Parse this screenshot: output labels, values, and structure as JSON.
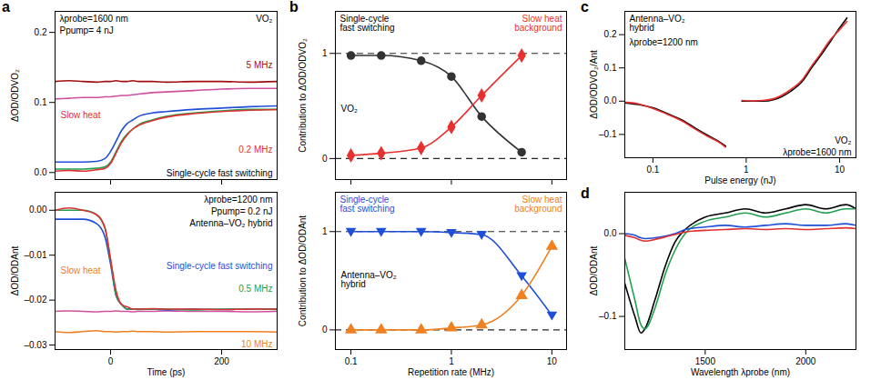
{
  "chart_data": [
    {
      "type": "line",
      "panel": "a",
      "y_label": "ΔOD/ODVO₂",
      "x": [
        -100,
        -75,
        -50,
        -25,
        -10,
        0,
        10,
        20,
        30,
        40,
        50,
        75,
        100,
        150,
        200,
        250,
        300
      ],
      "xlim": [
        -100,
        300
      ],
      "xticks": [
        0,
        200
      ],
      "ylim": [
        -0.01,
        0.23
      ],
      "yticks": [
        {
          "value": 0,
          "label": "0.0"
        },
        {
          "value": 0.1,
          "label": "0.1"
        },
        {
          "value": 0.2,
          "label": "0.2"
        }
      ],
      "tick_labels": "y",
      "series": [
        {
          "color": "#a01010",
          "values": [
            0.13,
            0.131,
            0.13,
            0.129,
            0.13,
            0.13,
            0.131,
            0.13,
            0.13,
            0.131,
            0.13,
            0.13,
            0.129,
            0.13,
            0.13,
            0.129,
            0.13
          ]
        },
        {
          "color": "#d050a0",
          "values": [
            0.105,
            0.106,
            0.107,
            0.107,
            0.108,
            0.108,
            0.109,
            0.11,
            0.11,
            0.111,
            0.112,
            0.114,
            0.115,
            0.117,
            0.119,
            0.12,
            0.12
          ]
        },
        {
          "color": "#1f4fd8",
          "values": [
            0.015,
            0.015,
            0.015,
            0.016,
            0.02,
            0.03,
            0.045,
            0.06,
            0.07,
            0.075,
            0.08,
            0.085,
            0.087,
            0.09,
            0.092,
            0.094,
            0.095
          ]
        },
        {
          "color": "#20a050",
          "values": [
            0.005,
            0.005,
            0.005,
            0.006,
            0.008,
            0.015,
            0.03,
            0.045,
            0.055,
            0.062,
            0.068,
            0.075,
            0.08,
            0.085,
            0.088,
            0.09,
            0.09
          ]
        },
        {
          "color": "#e03030",
          "values": [
            0.002,
            0.003,
            0.002,
            0.004,
            0.006,
            0.013,
            0.028,
            0.043,
            0.054,
            0.062,
            0.067,
            0.074,
            0.079,
            0.084,
            0.087,
            0.089,
            0.09
          ]
        }
      ],
      "annotations": [
        {
          "text": "λprobe=1600 nm",
          "color": "#000000"
        },
        {
          "text": "Ppump= 4 nJ",
          "color": "#000000"
        },
        {
          "text": "VO₂",
          "color": "#000000"
        },
        {
          "text": "5 MHz",
          "color": "#a01010"
        },
        {
          "text": "Slow heat",
          "color": "#e03030"
        },
        {
          "text": "0.2 MHz",
          "color": "#e03030"
        },
        {
          "text": "Single-cycle fast switching",
          "color": "#000000"
        }
      ]
    },
    {
      "type": "line",
      "y_label": "ΔOD/ODAnt",
      "x_label": "Time (ps)",
      "x": [
        -100,
        -75,
        -50,
        -25,
        -10,
        0,
        10,
        20,
        30,
        40,
        50,
        75,
        100,
        150,
        200,
        250,
        300
      ],
      "xlim": [
        -100,
        300
      ],
      "xticks": [
        0,
        200
      ],
      "ylim": [
        -0.031,
        0.004
      ],
      "yticks": [
        {
          "value": -0.03,
          "label": "–0.03"
        },
        {
          "value": -0.02,
          "label": "–0.02"
        },
        {
          "value": -0.01,
          "label": "–0.01"
        },
        {
          "value": 0,
          "label": "0.00"
        }
      ],
      "series": [
        {
          "color": "#f08020",
          "values": [
            -0.027,
            -0.0272,
            -0.027,
            -0.0268,
            -0.027,
            -0.027,
            -0.0271,
            -0.027,
            -0.027,
            -0.0269,
            -0.027,
            -0.027,
            -0.0271,
            -0.027,
            -0.027,
            -0.027,
            -0.0271
          ]
        },
        {
          "color": "#d050a0",
          "values": [
            -0.0225,
            -0.0224,
            -0.0225,
            -0.0226,
            -0.0225,
            -0.0225,
            -0.0224,
            -0.0225,
            -0.0225,
            -0.0226,
            -0.0225,
            -0.0225,
            -0.0224,
            -0.0225,
            -0.0225,
            -0.0226,
            -0.0225
          ]
        },
        {
          "color": "#1f4fd8",
          "values": [
            -0.002,
            -0.002,
            -0.002,
            -0.003,
            -0.006,
            -0.012,
            -0.019,
            -0.021,
            -0.022,
            -0.022,
            -0.022,
            -0.022,
            -0.0222,
            -0.022,
            -0.0221,
            -0.022,
            -0.022
          ]
        },
        {
          "color": "#20a050",
          "values": [
            0,
            0,
            0,
            -0.001,
            -0.004,
            -0.011,
            -0.019,
            -0.021,
            -0.022,
            -0.022,
            -0.0221,
            -0.022,
            -0.022,
            -0.0222,
            -0.022,
            -0.022,
            -0.0221
          ]
        },
        {
          "color": "#e03030",
          "values": [
            0,
            0.0005,
            0,
            -0.001,
            -0.004,
            -0.011,
            -0.018,
            -0.021,
            -0.0215,
            -0.022,
            -0.022,
            -0.0219,
            -0.022,
            -0.022,
            -0.0221,
            -0.022,
            -0.022
          ]
        }
      ],
      "annotations": [
        {
          "text": "λprobe=1200 nm",
          "color": "#000000"
        },
        {
          "text": "Ppump= 0.2 nJ",
          "color": "#000000"
        },
        {
          "text": "Antenna–VO₂ hybrid",
          "color": "#000000"
        },
        {
          "text": "Slow heat",
          "color": "#f08020"
        },
        {
          "text": "Single-cycle fast switching",
          "color": "#1f4fd8"
        },
        {
          "text": "0.5 MHz",
          "color": "#20a050"
        },
        {
          "text": "10 MHz",
          "color": "#f08020"
        }
      ]
    },
    {
      "type": "line",
      "panel": "b",
      "log": "x",
      "grid": true,
      "y_label": "Contribution to ΔOD/ODVO₂",
      "x": [
        0.1,
        0.2,
        0.5,
        1,
        2,
        5
      ],
      "xlim": [
        0.07,
        14
      ],
      "xticks": [
        0.1,
        1,
        10
      ],
      "ylim": [
        -0.2,
        1.4
      ],
      "yticks": [
        0,
        1
      ],
      "tick_labels": "y",
      "series": [
        {
          "color": "#333333",
          "marker": "circle",
          "values": [
            0.98,
            0.98,
            0.93,
            0.78,
            0.4,
            0.06
          ]
        },
        {
          "color": "#e83030",
          "marker": "diamond",
          "values": [
            0.03,
            0.05,
            0.1,
            0.3,
            0.6,
            0.98
          ]
        }
      ],
      "annotations": [
        {
          "text": "Single-cycle fast switching",
          "color": "#000000"
        },
        {
          "text": "Slow heat background",
          "color": "#e83030"
        },
        {
          "text": "VO₂",
          "color": "#000000"
        }
      ]
    },
    {
      "type": "line",
      "log": "x",
      "grid": true,
      "y_label": "Contribution to ΔOD/ODAnt",
      "x_label": "Repetition rate (MHz)",
      "x": [
        0.1,
        0.2,
        0.5,
        1,
        2,
        5,
        10
      ],
      "xlim": [
        0.07,
        14
      ],
      "xticks": [
        0.1,
        1,
        10
      ],
      "ylim": [
        -0.2,
        1.4
      ],
      "yticks": [
        0,
        1
      ],
      "series": [
        {
          "color": "#1f4fd8",
          "marker": "triangle-down",
          "values": [
            1,
            1,
            1,
            0.99,
            0.97,
            0.55,
            0.15
          ]
        },
        {
          "color": "#f08020",
          "marker": "triangle-up",
          "values": [
            0,
            0,
            0,
            0.02,
            0.05,
            0.35,
            0.85
          ]
        }
      ],
      "annotations": [
        {
          "text": "Single-cycle fast switching",
          "color": "#1f4fd8"
        },
        {
          "text": "Slow heat background",
          "color": "#f08020"
        },
        {
          "text": "Antenna–VO₂ hybrid",
          "color": "#000000"
        }
      ]
    },
    {
      "type": "line",
      "panel": "c",
      "log": "x",
      "y_label": "ΔOD/ODVO₂/Ant",
      "x_label": "Pulse energy (nJ)",
      "x": [
        0.05,
        0.07,
        0.1,
        0.15,
        0.2,
        0.3,
        0.4,
        0.5,
        0.6,
        0.75,
        0.9,
        1.2,
        1.5,
        2,
        3,
        4,
        5,
        6,
        8,
        10,
        12
      ],
      "xlim": [
        0.05,
        15
      ],
      "xticks": [
        0.1,
        1,
        10
      ],
      "ylim": [
        -0.17,
        0.27
      ],
      "yticks": [
        {
          "value": -0.1,
          "label": "–0.1"
        },
        {
          "value": 0,
          "label": "0.0"
        },
        {
          "value": 0.1,
          "label": "0.1"
        },
        {
          "value": 0.2,
          "label": "0.2"
        }
      ],
      "series": [
        {
          "color": "#000000",
          "values": [
            -0.005,
            -0.01,
            -0.02,
            -0.04,
            -0.055,
            -0.085,
            -0.105,
            -0.12,
            -0.135,
            null,
            0,
            0,
            0,
            0.005,
            0.03,
            0.06,
            0.1,
            0.13,
            0.18,
            0.22,
            0.25
          ]
        },
        {
          "color": "#e83030",
          "values": [
            -0.003,
            -0.008,
            -0.022,
            -0.042,
            -0.058,
            -0.088,
            -0.108,
            -0.122,
            -0.138,
            null,
            0.002,
            0.001,
            0.002,
            0.008,
            0.035,
            0.065,
            0.105,
            0.135,
            0.185,
            0.215,
            0.24
          ]
        }
      ],
      "annotations": [
        {
          "text": "Antenna–VO₂ hybrid",
          "color": "#000000"
        },
        {
          "text": "λprobe=1200 nm",
          "color": "#000000"
        },
        {
          "text": "VO₂",
          "color": "#000000"
        },
        {
          "text": "λprobe=1600 nm",
          "color": "#000000"
        }
      ]
    },
    {
      "type": "line",
      "panel": "d",
      "y_label": "ΔOD/ODAnt",
      "x_label": "Wavelength λprobe (nm)",
      "x": [
        1100,
        1150,
        1180,
        1200,
        1250,
        1300,
        1350,
        1400,
        1500,
        1600,
        1700,
        1800,
        1900,
        2000,
        2100,
        2200,
        2250
      ],
      "xlim": [
        1100,
        2250
      ],
      "xticks": [
        1500,
        2000
      ],
      "ylim": [
        -0.14,
        0.05
      ],
      "yticks": [
        {
          "value": -0.1,
          "label": "–0.1"
        },
        {
          "value": 0,
          "label": "0.0"
        }
      ],
      "series": [
        {
          "color": "#000000",
          "values": [
            -0.06,
            -0.1,
            -0.12,
            -0.115,
            -0.08,
            -0.04,
            -0.01,
            0.005,
            0.02,
            0.025,
            0.03,
            0.025,
            0.03,
            0.035,
            0.03,
            0.035,
            0.03
          ]
        },
        {
          "color": "#20a050",
          "values": [
            -0.03,
            -0.08,
            -0.11,
            -0.115,
            -0.09,
            -0.05,
            -0.02,
            0,
            0.015,
            0.02,
            0.025,
            0.02,
            0.025,
            0.03,
            0.025,
            0.03,
            0.03
          ]
        },
        {
          "color": "#1f4fd8",
          "values": [
            0,
            -0.002,
            -0.005,
            -0.006,
            -0.005,
            -0.003,
            0,
            0.005,
            0.008,
            0.01,
            0.008,
            0.01,
            0.012,
            0.01,
            0.01,
            0.012,
            0.01
          ]
        },
        {
          "color": "#e03030",
          "values": [
            -0.002,
            -0.005,
            -0.008,
            -0.009,
            -0.007,
            -0.004,
            -0.001,
            0.002,
            0.004,
            0.005,
            0.006,
            0.005,
            0.006,
            0.005,
            0.006,
            0.007,
            0.006
          ]
        }
      ]
    }
  ]
}
